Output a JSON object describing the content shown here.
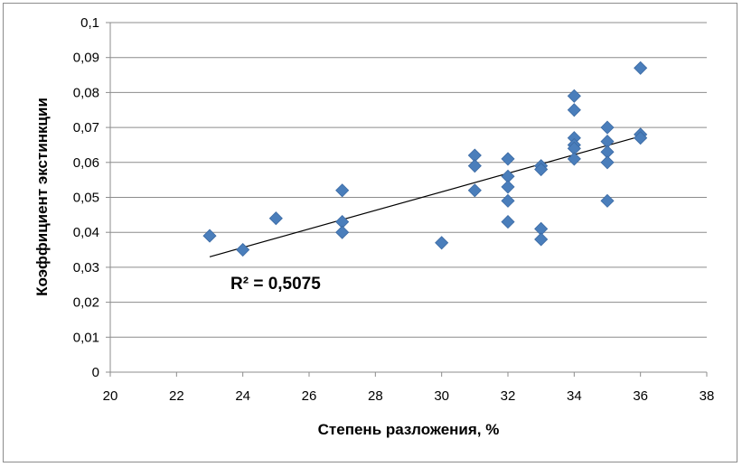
{
  "chart_data": {
    "type": "scatter",
    "title": "",
    "xlabel": "Степень разложения,  %",
    "ylabel": "Коэффициент экстинкции",
    "xlim": [
      20,
      38
    ],
    "ylim": [
      0,
      0.1
    ],
    "x_ticks": [
      "20",
      "22",
      "24",
      "26",
      "28",
      "30",
      "32",
      "34",
      "36",
      "38"
    ],
    "y_ticks": [
      "0",
      "0,01",
      "0,02",
      "0,03",
      "0,04",
      "0,05",
      "0,06",
      "0,07",
      "0,08",
      "0,09",
      "0,1"
    ],
    "grid": "horizontal",
    "marker_color": "#4a7ebb",
    "trendline": {
      "type": "linear",
      "x": [
        23,
        36
      ],
      "y": [
        0.033,
        0.0675
      ],
      "label": "R² = 0,5075",
      "color": "#000000"
    },
    "series": [
      {
        "points": [
          [
            23,
            0.039
          ],
          [
            24,
            0.035
          ],
          [
            25,
            0.044
          ],
          [
            27,
            0.052
          ],
          [
            27,
            0.043
          ],
          [
            27,
            0.04
          ],
          [
            30,
            0.037
          ],
          [
            31,
            0.062
          ],
          [
            31,
            0.059
          ],
          [
            31,
            0.052
          ],
          [
            32,
            0.061
          ],
          [
            32,
            0.056
          ],
          [
            32,
            0.053
          ],
          [
            32,
            0.049
          ],
          [
            32,
            0.043
          ],
          [
            33,
            0.059
          ],
          [
            33,
            0.058
          ],
          [
            33,
            0.041
          ],
          [
            33,
            0.038
          ],
          [
            34,
            0.079
          ],
          [
            34,
            0.075
          ],
          [
            34,
            0.067
          ],
          [
            34,
            0.065
          ],
          [
            34,
            0.064
          ],
          [
            34,
            0.061
          ],
          [
            35,
            0.07
          ],
          [
            35,
            0.066
          ],
          [
            35,
            0.063
          ],
          [
            35,
            0.06
          ],
          [
            35,
            0.049
          ],
          [
            36,
            0.087
          ],
          [
            36,
            0.068
          ],
          [
            36,
            0.067
          ]
        ]
      }
    ]
  }
}
